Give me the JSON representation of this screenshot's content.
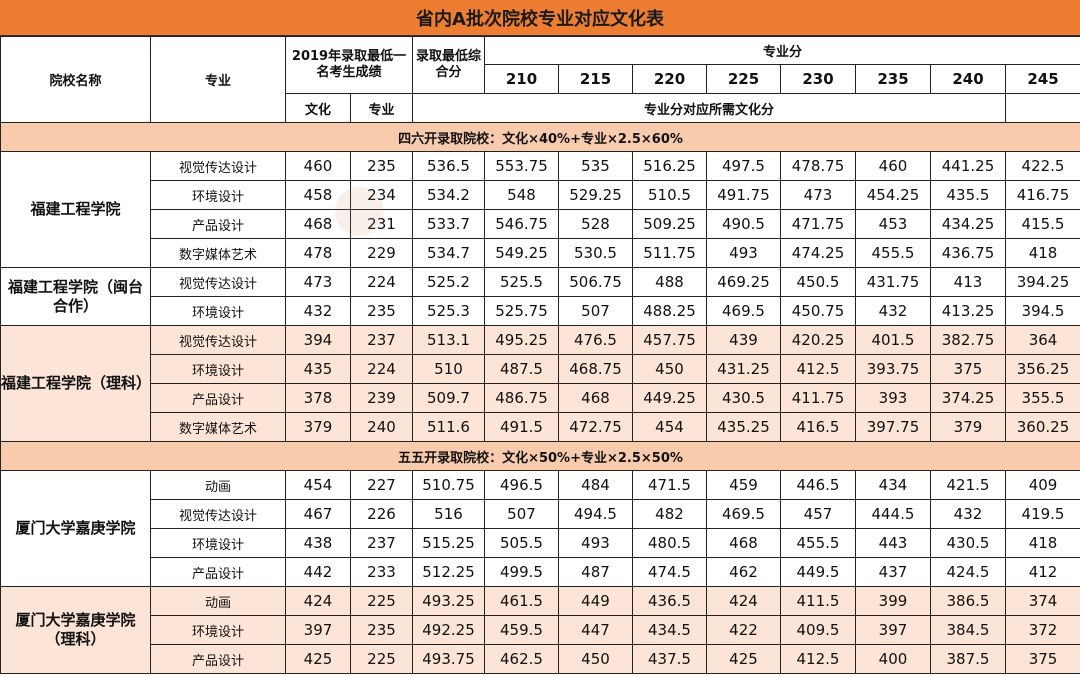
{
  "title": "省内A批次院校专业对应文化表",
  "header": {
    "school": "院校名称",
    "major": "专业",
    "prev_year": "2019年录取最低一名考生成绩",
    "culture": "文化",
    "specialty": "专业",
    "min_composite": "录取最低综合分",
    "specialty_score": "专业分",
    "score_cols": [
      "210",
      "215",
      "220",
      "225",
      "230",
      "235",
      "240",
      "245"
    ],
    "required_note": "专业分对应所需文化分"
  },
  "sections": [
    {
      "label": "四六开录取院校：文化×40%+专业×2.5×60%",
      "groups": [
        {
          "school": "福建工程学院",
          "shaded": false,
          "rows": [
            {
              "major": "视觉传达设计",
              "culture": "460",
              "specialty": "235",
              "composite": "536.5",
              "needs": [
                "553.75",
                "535",
                "516.25",
                "497.5",
                "478.75",
                "460",
                "441.25",
                "422.5"
              ]
            },
            {
              "major": "环境设计",
              "culture": "458",
              "specialty": "234",
              "composite": "534.2",
              "needs": [
                "548",
                "529.25",
                "510.5",
                "491.75",
                "473",
                "454.25",
                "435.5",
                "416.75"
              ]
            },
            {
              "major": "产品设计",
              "culture": "468",
              "specialty": "231",
              "composite": "533.7",
              "needs": [
                "546.75",
                "528",
                "509.25",
                "490.5",
                "471.75",
                "453",
                "434.25",
                "415.5"
              ]
            },
            {
              "major": "数字媒体艺术",
              "culture": "478",
              "specialty": "229",
              "composite": "534.7",
              "needs": [
                "549.25",
                "530.5",
                "511.75",
                "493",
                "474.25",
                "455.5",
                "436.75",
                "418"
              ]
            }
          ]
        },
        {
          "school": "福建工程学院（闽台合作）",
          "shaded": false,
          "rows": [
            {
              "major": "视觉传达设计",
              "culture": "473",
              "specialty": "224",
              "composite": "525.2",
              "needs": [
                "525.5",
                "506.75",
                "488",
                "469.25",
                "450.5",
                "431.75",
                "413",
                "394.25"
              ]
            },
            {
              "major": "环境设计",
              "culture": "432",
              "specialty": "235",
              "composite": "525.3",
              "needs": [
                "525.75",
                "507",
                "488.25",
                "469.5",
                "450.75",
                "432",
                "413.25",
                "394.5"
              ]
            }
          ]
        },
        {
          "school": "福建工程学院（理科）",
          "shaded": true,
          "rows": [
            {
              "major": "视觉传达设计",
              "culture": "394",
              "specialty": "237",
              "composite": "513.1",
              "needs": [
                "495.25",
                "476.5",
                "457.75",
                "439",
                "420.25",
                "401.5",
                "382.75",
                "364"
              ]
            },
            {
              "major": "环境设计",
              "culture": "435",
              "specialty": "224",
              "composite": "510",
              "needs": [
                "487.5",
                "468.75",
                "450",
                "431.25",
                "412.5",
                "393.75",
                "375",
                "356.25"
              ]
            },
            {
              "major": "产品设计",
              "culture": "378",
              "specialty": "239",
              "composite": "509.7",
              "needs": [
                "486.75",
                "468",
                "449.25",
                "430.5",
                "411.75",
                "393",
                "374.25",
                "355.5"
              ]
            },
            {
              "major": "数字媒体艺术",
              "culture": "379",
              "specialty": "240",
              "composite": "511.6",
              "needs": [
                "491.5",
                "472.75",
                "454",
                "435.25",
                "416.5",
                "397.75",
                "379",
                "360.25"
              ]
            }
          ]
        }
      ]
    },
    {
      "label": "五五开录取院校：文化×50%+专业×2.5×50%",
      "groups": [
        {
          "school": "厦门大学嘉庚学院",
          "shaded": false,
          "rows": [
            {
              "major": "动画",
              "culture": "454",
              "specialty": "227",
              "composite": "510.75",
              "needs": [
                "496.5",
                "484",
                "471.5",
                "459",
                "446.5",
                "434",
                "421.5",
                "409"
              ]
            },
            {
              "major": "视觉传达设计",
              "culture": "467",
              "specialty": "226",
              "composite": "516",
              "needs": [
                "507",
                "494.5",
                "482",
                "469.5",
                "457",
                "444.5",
                "432",
                "419.5"
              ]
            },
            {
              "major": "环境设计",
              "culture": "438",
              "specialty": "237",
              "composite": "515.25",
              "needs": [
                "505.5",
                "493",
                "480.5",
                "468",
                "455.5",
                "443",
                "430.5",
                "418"
              ]
            },
            {
              "major": "产品设计",
              "culture": "442",
              "specialty": "233",
              "composite": "512.25",
              "needs": [
                "499.5",
                "487",
                "474.5",
                "462",
                "449.5",
                "437",
                "424.5",
                "412"
              ]
            }
          ]
        },
        {
          "school": "厦门大学嘉庚学院（理科）",
          "shaded": true,
          "rows": [
            {
              "major": "动画",
              "culture": "424",
              "specialty": "225",
              "composite": "493.25",
              "needs": [
                "461.5",
                "449",
                "436.5",
                "424",
                "411.5",
                "399",
                "386.5",
                "374"
              ]
            },
            {
              "major": "环境设计",
              "culture": "397",
              "specialty": "235",
              "composite": "492.25",
              "needs": [
                "459.5",
                "447",
                "434.5",
                "422",
                "409.5",
                "397",
                "384.5",
                "372"
              ]
            },
            {
              "major": "产品设计",
              "culture": "425",
              "specialty": "225",
              "composite": "493.75",
              "needs": [
                "462.5",
                "450",
                "437.5",
                "425",
                "412.5",
                "400",
                "387.5",
                "375"
              ]
            }
          ]
        }
      ]
    }
  ]
}
